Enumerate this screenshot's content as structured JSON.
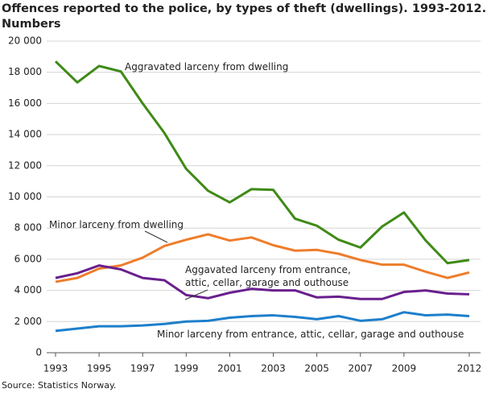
{
  "chart_data": {
    "type": "line",
    "title": "Offences reported to the police, by types of theft (dwellings). 1993-2012.",
    "subtitle": "Numbers",
    "source": "Source: Statistics Norway.",
    "x": [
      1993,
      1994,
      1995,
      1996,
      1997,
      1998,
      1999,
      2000,
      2001,
      2002,
      2003,
      2004,
      2005,
      2006,
      2007,
      2008,
      2009,
      2010,
      2011,
      2012
    ],
    "series": [
      {
        "name": "Aggravated larceny from dwelling",
        "color": "#3f8a17",
        "values": [
          18700,
          17350,
          18400,
          18050,
          16000,
          14100,
          11800,
          10400,
          9650,
          10500,
          10450,
          8600,
          8150,
          7250,
          6750,
          8100,
          9000,
          7200,
          5750,
          5950
        ]
      },
      {
        "name": "Minor larceny from dwelling",
        "color": "#ee7d2b",
        "values": [
          4550,
          4800,
          5400,
          5600,
          6100,
          6850,
          7250,
          7600,
          7200,
          7400,
          6900,
          6550,
          6600,
          6350,
          5950,
          5650,
          5650,
          5200,
          4800,
          5150
        ]
      },
      {
        "name": "Aggavated larceny from entrance, attic, cellar, garage and outhouse",
        "color": "#6a1f8e",
        "values": [
          4800,
          5100,
          5600,
          5350,
          4800,
          4650,
          3700,
          3500,
          3850,
          4100,
          4000,
          4000,
          3550,
          3600,
          3450,
          3450,
          3900,
          4000,
          3800,
          3750
        ]
      },
      {
        "name": "Minor larceny from entrance, attic, cellar, garage and outhouse",
        "color": "#1e7fcb",
        "values": [
          1400,
          1550,
          1700,
          1700,
          1750,
          1850,
          2000,
          2050,
          2250,
          2350,
          2400,
          2300,
          2150,
          2350,
          2050,
          2150,
          2600,
          2400,
          2450,
          2350
        ]
      }
    ],
    "xlim": [
      1993,
      2012
    ],
    "xticks": [
      1993,
      1995,
      1997,
      1999,
      2001,
      2003,
      2005,
      2007,
      2009,
      2012
    ],
    "ylim": [
      0,
      20000
    ],
    "yticks": [
      0,
      {
        "value": 2000,
        "label": "2 000"
      },
      {
        "value": 4000,
        "label": "4 000"
      },
      {
        "value": 6000,
        "label": "6 000"
      },
      {
        "value": 8000,
        "label": "8 000"
      },
      {
        "value": 10000,
        "label": "10 000"
      },
      {
        "value": 12000,
        "label": "12 000"
      },
      {
        "value": 14000,
        "label": "14 000"
      },
      {
        "value": 16000,
        "label": "16 000"
      },
      {
        "value": 18000,
        "label": "18 000"
      },
      {
        "value": 20000,
        "label": "20 000"
      }
    ],
    "grid": true
  }
}
